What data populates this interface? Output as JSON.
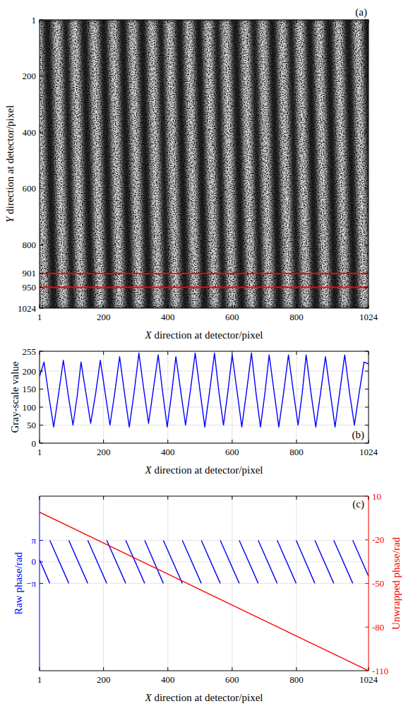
{
  "chart_data": [
    {
      "type": "image",
      "panel": "(a)",
      "xlabel": "X direction at detector/pixel",
      "ylabel": "Y direction at detector/pixel",
      "xlim": [
        1,
        1024
      ],
      "ylim": [
        1024,
        1
      ],
      "xticks": [
        1,
        200,
        400,
        600,
        800,
        1024
      ],
      "yticks": [
        1,
        200,
        400,
        600,
        800,
        901,
        950,
        1024
      ],
      "rows_marked": [
        901,
        950
      ],
      "color": "#ff0000",
      "bright_fringe_x_at_top": [
        -5,
        55,
        110,
        170,
        230,
        290,
        350,
        405,
        465,
        525,
        580,
        640,
        695,
        755,
        810,
        870,
        930,
        990
      ],
      "bright_fringe_x_at_bottom": [
        15,
        75,
        130,
        190,
        250,
        310,
        370,
        425,
        485,
        545,
        600,
        660,
        715,
        775,
        830,
        890,
        950,
        1010
      ]
    },
    {
      "type": "line",
      "panel": "(b)",
      "xlabel": "X direction at detector/pixel",
      "ylabel": "Gray-scale value",
      "xlim": [
        1,
        1024
      ],
      "ylim": [
        0,
        255
      ],
      "xticks": [
        1,
        200,
        400,
        600,
        800,
        1024
      ],
      "yticks": [
        0,
        50,
        100,
        150,
        200,
        255
      ],
      "grid": true,
      "x": [
        1,
        15,
        30,
        45,
        60,
        75,
        90,
        105,
        118,
        130,
        145,
        160,
        175,
        190,
        205,
        220,
        235,
        250,
        265,
        280,
        295,
        310,
        325,
        340,
        355,
        370,
        384,
        398,
        412,
        425,
        440,
        455,
        470,
        485,
        500,
        515,
        530,
        545,
        559,
        573,
        587,
        600,
        615,
        630,
        645,
        660,
        674,
        688,
        702,
        715,
        730,
        745,
        760,
        775,
        790,
        805,
        818,
        830,
        845,
        860,
        875,
        890,
        905,
        920,
        935,
        950,
        965,
        980,
        995,
        1010,
        1024
      ],
      "series": [
        {
          "color": "#0000ff",
          "values": [
            185,
            225,
            130,
            45,
            135,
            230,
            135,
            50,
            130,
            225,
            140,
            55,
            135,
            230,
            140,
            50,
            140,
            240,
            140,
            45,
            140,
            250,
            150,
            55,
            150,
            245,
            140,
            45,
            140,
            240,
            145,
            50,
            145,
            250,
            145,
            45,
            145,
            250,
            140,
            50,
            145,
            245,
            145,
            45,
            145,
            250,
            140,
            45,
            140,
            245,
            145,
            45,
            140,
            245,
            145,
            50,
            140,
            245,
            140,
            45,
            140,
            240,
            140,
            45,
            145,
            245,
            140,
            50,
            140,
            225,
            220
          ]
        }
      ]
    },
    {
      "type": "line",
      "panel": "(c)",
      "xlabel": "X direction at detector/pixel",
      "ylabel": "Raw phase/rad",
      "y2label": "Unwrapped phase/rad",
      "xlim": [
        1,
        1024
      ],
      "ylim": [
        -15.9,
        9.6
      ],
      "xticks": [
        1,
        200,
        400,
        600,
        800,
        1024
      ],
      "yticks": [
        {
          "value": -3.1416,
          "label": "−π"
        },
        0,
        {
          "value": 3.1416,
          "label": "π"
        }
      ],
      "y2lim": [
        -110,
        10
      ],
      "y2ticks": [
        10,
        -20,
        -50,
        -80,
        -110
      ],
      "grid": true,
      "series": [
        {
          "color": "#0000ff",
          "x": [
            1,
            33,
            33,
            33,
            92,
            92,
            92,
            151,
            151,
            151,
            210,
            210,
            210,
            269,
            269,
            269,
            328,
            328,
            328,
            386,
            386,
            386,
            445,
            445,
            445,
            504,
            504,
            504,
            563,
            563,
            563,
            622,
            622,
            622,
            681,
            681,
            681,
            740,
            740,
            740,
            799,
            799,
            799,
            857,
            857,
            857,
            916,
            916,
            916,
            975,
            975,
            975,
            1024
          ],
          "values": [
            0.3,
            -3.14,
            null,
            3.14,
            -3.14,
            null,
            3.14,
            -3.14,
            null,
            3.14,
            -3.14,
            null,
            3.14,
            -3.14,
            null,
            3.14,
            -3.14,
            null,
            3.14,
            -3.14,
            null,
            3.14,
            -3.14,
            null,
            3.14,
            -3.14,
            null,
            3.14,
            -3.14,
            null,
            3.14,
            -3.14,
            null,
            3.14,
            -3.14,
            null,
            3.14,
            -3.14,
            null,
            3.14,
            -3.14,
            null,
            3.14,
            -3.14,
            null,
            3.14,
            -3.14,
            null,
            3.14,
            -3.14,
            null,
            3.14,
            -2.08
          ]
        },
        {
          "color": "#ff0000",
          "axis": "y2",
          "x": [
            1,
            512,
            1024
          ],
          "values": [
            -1,
            -55.5,
            -110
          ]
        }
      ]
    }
  ]
}
